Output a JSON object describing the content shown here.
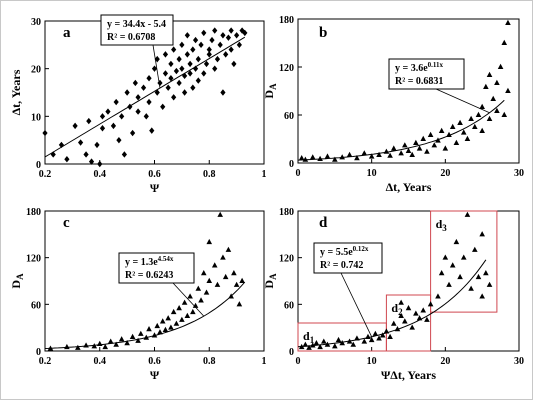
{
  "colors": {
    "axis": "#000000",
    "marker": "#000000",
    "trend": "#000000",
    "region_box": "#d0474f",
    "frame": "#c8c8c8"
  },
  "chart_data": [
    {
      "panel": "a",
      "type": "scatter",
      "marker": "diamond",
      "xlabel": "Ψ",
      "ylabel": "Δt, Years",
      "xlim": [
        0.2,
        1
      ],
      "ylim": [
        0,
        30
      ],
      "xticks": [
        "0.2",
        "0.4",
        "0.6",
        "0.8",
        "1"
      ],
      "yticks": [
        "0",
        "10",
        "20",
        "30"
      ],
      "trend": {
        "kind": "linear",
        "a": 34.4,
        "b": -5.4,
        "x_range": [
          0.2,
          0.93
        ]
      },
      "equation": "y = 34.4x - 5.4",
      "r2": "R² = 0.6708",
      "points": [
        [
          0.2,
          6.5
        ],
        [
          0.23,
          2
        ],
        [
          0.26,
          4
        ],
        [
          0.28,
          1
        ],
        [
          0.31,
          8
        ],
        [
          0.33,
          4.5
        ],
        [
          0.35,
          2
        ],
        [
          0.36,
          9
        ],
        [
          0.37,
          0.5
        ],
        [
          0.39,
          4
        ],
        [
          0.4,
          0
        ],
        [
          0.41,
          10
        ],
        [
          0.41,
          7.5
        ],
        [
          0.43,
          11
        ],
        [
          0.45,
          8
        ],
        [
          0.46,
          13
        ],
        [
          0.47,
          5
        ],
        [
          0.48,
          10
        ],
        [
          0.49,
          2
        ],
        [
          0.5,
          15
        ],
        [
          0.51,
          12
        ],
        [
          0.52,
          6.5
        ],
        [
          0.53,
          17
        ],
        [
          0.54,
          11
        ],
        [
          0.54,
          14
        ],
        [
          0.56,
          16
        ],
        [
          0.57,
          10
        ],
        [
          0.58,
          18
        ],
        [
          0.58,
          13
        ],
        [
          0.59,
          7
        ],
        [
          0.6,
          20
        ],
        [
          0.61,
          15
        ],
        [
          0.61,
          22
        ],
        [
          0.62,
          17
        ],
        [
          0.63,
          12
        ],
        [
          0.64,
          19
        ],
        [
          0.64,
          23
        ],
        [
          0.65,
          16
        ],
        [
          0.66,
          21
        ],
        [
          0.66,
          18
        ],
        [
          0.67,
          24
        ],
        [
          0.67,
          14
        ],
        [
          0.68,
          19.5
        ],
        [
          0.69,
          22
        ],
        [
          0.69,
          17
        ],
        [
          0.7,
          25
        ],
        [
          0.7,
          20
        ],
        [
          0.71,
          15
        ],
        [
          0.71,
          18.5
        ],
        [
          0.72,
          23
        ],
        [
          0.72,
          27
        ],
        [
          0.73,
          19
        ],
        [
          0.73,
          21
        ],
        [
          0.74,
          16
        ],
        [
          0.74,
          24
        ],
        [
          0.75,
          20
        ],
        [
          0.75,
          26
        ],
        [
          0.76,
          22
        ],
        [
          0.76,
          17.5
        ],
        [
          0.77,
          25
        ],
        [
          0.78,
          19
        ],
        [
          0.78,
          27.5
        ],
        [
          0.79,
          21
        ],
        [
          0.8,
          24
        ],
        [
          0.8,
          23
        ],
        [
          0.81,
          26
        ],
        [
          0.82,
          20
        ],
        [
          0.82,
          28
        ],
        [
          0.83,
          22
        ],
        [
          0.84,
          25
        ],
        [
          0.85,
          27
        ],
        [
          0.85,
          15
        ],
        [
          0.86,
          23
        ],
        [
          0.87,
          26.5
        ],
        [
          0.88,
          24
        ],
        [
          0.88,
          28
        ],
        [
          0.89,
          21
        ],
        [
          0.9,
          27
        ],
        [
          0.91,
          25
        ],
        [
          0.92,
          28
        ],
        [
          0.93,
          27.5
        ]
      ]
    },
    {
      "panel": "b",
      "type": "scatter",
      "marker": "triangle",
      "xlabel": "Δt, Years",
      "ylabel": "D_A",
      "xlim": [
        0,
        30
      ],
      "ylim": [
        0,
        180
      ],
      "xticks": [
        "0",
        "10",
        "20",
        "30"
      ],
      "yticks": [
        "0",
        "60",
        "120",
        "180"
      ],
      "trend": {
        "kind": "exponential",
        "a": 3.6,
        "b": 0.11,
        "x_range": [
          0,
          28
        ]
      },
      "equation": "y = 3.6e^0.11x",
      "r2": "R² = 0.6831",
      "points": [
        [
          0.5,
          6
        ],
        [
          1,
          4
        ],
        [
          2,
          7
        ],
        [
          3,
          5
        ],
        [
          4,
          8
        ],
        [
          5,
          4
        ],
        [
          6,
          7
        ],
        [
          7,
          10
        ],
        [
          8,
          6
        ],
        [
          9,
          12
        ],
        [
          10,
          8
        ],
        [
          11,
          10
        ],
        [
          12,
          14
        ],
        [
          12.5,
          9
        ],
        [
          13,
          18
        ],
        [
          14,
          12
        ],
        [
          14.5,
          22
        ],
        [
          15,
          15
        ],
        [
          15.5,
          10
        ],
        [
          16,
          25
        ],
        [
          16.5,
          18
        ],
        [
          17,
          30
        ],
        [
          17.5,
          14
        ],
        [
          18,
          35
        ],
        [
          18.5,
          22
        ],
        [
          19,
          28
        ],
        [
          19.5,
          40
        ],
        [
          20,
          18
        ],
        [
          20.5,
          35
        ],
        [
          21,
          45
        ],
        [
          21.5,
          25
        ],
        [
          22,
          50
        ],
        [
          22.5,
          38
        ],
        [
          23,
          30
        ],
        [
          23.5,
          55
        ],
        [
          24,
          45
        ],
        [
          24.5,
          60
        ],
        [
          25,
          40
        ],
        [
          25,
          70
        ],
        [
          25.5,
          95
        ],
        [
          26,
          55
        ],
        [
          26,
          110
        ],
        [
          26.5,
          80
        ],
        [
          27,
          65
        ],
        [
          27,
          100
        ],
        [
          27.5,
          120
        ],
        [
          28,
          60
        ],
        [
          28,
          150
        ],
        [
          28.5,
          175
        ],
        [
          28.5,
          90
        ]
      ]
    },
    {
      "panel": "c",
      "type": "scatter",
      "marker": "triangle",
      "xlabel": "Ψ",
      "ylabel": "D_A",
      "xlim": [
        0.2,
        1
      ],
      "ylim": [
        0,
        180
      ],
      "xticks": [
        "0.2",
        "0.4",
        "0.6",
        "0.8",
        "1"
      ],
      "yticks": [
        "0",
        "60",
        "120",
        "180"
      ],
      "trend": {
        "kind": "exponential",
        "a": 1.3,
        "b": 4.54,
        "x_range": [
          0.2,
          0.93
        ]
      },
      "equation": "y = 1.3e^4.54x",
      "r2": "R² = 0.6243",
      "points": [
        [
          0.22,
          3
        ],
        [
          0.28,
          5
        ],
        [
          0.32,
          4
        ],
        [
          0.35,
          7
        ],
        [
          0.38,
          6
        ],
        [
          0.4,
          9
        ],
        [
          0.42,
          5
        ],
        [
          0.44,
          12
        ],
        [
          0.46,
          8
        ],
        [
          0.48,
          15
        ],
        [
          0.5,
          10
        ],
        [
          0.52,
          18
        ],
        [
          0.54,
          13
        ],
        [
          0.55,
          22
        ],
        [
          0.57,
          17
        ],
        [
          0.58,
          28
        ],
        [
          0.6,
          20
        ],
        [
          0.61,
          32
        ],
        [
          0.62,
          24
        ],
        [
          0.63,
          38
        ],
        [
          0.64,
          27
        ],
        [
          0.65,
          42
        ],
        [
          0.66,
          30
        ],
        [
          0.67,
          50
        ],
        [
          0.68,
          35
        ],
        [
          0.69,
          55
        ],
        [
          0.7,
          40
        ],
        [
          0.71,
          62
        ],
        [
          0.72,
          45
        ],
        [
          0.73,
          70
        ],
        [
          0.74,
          50
        ],
        [
          0.75,
          58
        ],
        [
          0.76,
          80
        ],
        [
          0.77,
          65
        ],
        [
          0.78,
          100
        ],
        [
          0.79,
          75
        ],
        [
          0.8,
          90
        ],
        [
          0.8,
          140
        ],
        [
          0.82,
          110
        ],
        [
          0.83,
          85
        ],
        [
          0.84,
          175
        ],
        [
          0.85,
          120
        ],
        [
          0.86,
          95
        ],
        [
          0.87,
          130
        ],
        [
          0.88,
          70
        ],
        [
          0.89,
          100
        ],
        [
          0.9,
          85
        ],
        [
          0.91,
          60
        ],
        [
          0.92,
          90
        ]
      ]
    },
    {
      "panel": "d",
      "type": "scatter",
      "marker": "triangle",
      "xlabel": "ΨΔt, Years",
      "ylabel": "D_A",
      "xlim": [
        0,
        30
      ],
      "ylim": [
        0,
        180
      ],
      "xticks": [
        "0",
        "10",
        "20",
        "30"
      ],
      "yticks": [
        "0",
        "60",
        "120",
        "180"
      ],
      "trend": {
        "kind": "exponential",
        "a": 5.5,
        "b": 0.12,
        "x_range": [
          0,
          25.5
        ]
      },
      "equation": "y = 5.5e^0.12x",
      "r2": "R² = 0.742",
      "regions": [
        {
          "label": "d1",
          "x0": 0,
          "x1": 12,
          "y0": 0,
          "y1": 36
        },
        {
          "label": "d2",
          "x0": 12,
          "x1": 18,
          "y0": 0,
          "y1": 72
        },
        {
          "label": "d3",
          "x0": 18,
          "x1": 27,
          "y0": 50,
          "y1": 180
        }
      ],
      "points": [
        [
          0.5,
          5
        ],
        [
          1,
          8
        ],
        [
          1.5,
          4
        ],
        [
          2,
          7
        ],
        [
          2.5,
          10
        ],
        [
          3,
          5
        ],
        [
          3.5,
          12
        ],
        [
          4,
          8
        ],
        [
          5,
          6
        ],
        [
          5.5,
          14
        ],
        [
          6,
          10
        ],
        [
          7,
          12
        ],
        [
          7.5,
          8
        ],
        [
          8,
          16
        ],
        [
          9,
          12
        ],
        [
          9.5,
          18
        ],
        [
          10,
          14
        ],
        [
          10.5,
          22
        ],
        [
          11,
          16
        ],
        [
          11.5,
          20
        ],
        [
          12,
          25
        ],
        [
          12.5,
          18
        ],
        [
          13,
          35
        ],
        [
          13.5,
          28
        ],
        [
          14,
          45
        ],
        [
          14,
          62
        ],
        [
          14.5,
          38
        ],
        [
          15,
          55
        ],
        [
          15.5,
          30
        ],
        [
          16,
          48
        ],
        [
          16.5,
          42
        ],
        [
          17,
          52
        ],
        [
          17.5,
          40
        ],
        [
          18,
          60
        ],
        [
          19,
          70
        ],
        [
          19.5,
          100
        ],
        [
          20,
          120
        ],
        [
          20.5,
          85
        ],
        [
          21,
          110
        ],
        [
          21.5,
          140
        ],
        [
          22,
          95
        ],
        [
          22.5,
          120
        ],
        [
          23,
          175
        ],
        [
          23.5,
          80
        ],
        [
          24,
          130
        ],
        [
          24.5,
          95
        ],
        [
          25,
          70
        ],
        [
          25,
          150
        ],
        [
          25.5,
          100
        ],
        [
          26,
          85
        ]
      ]
    }
  ]
}
